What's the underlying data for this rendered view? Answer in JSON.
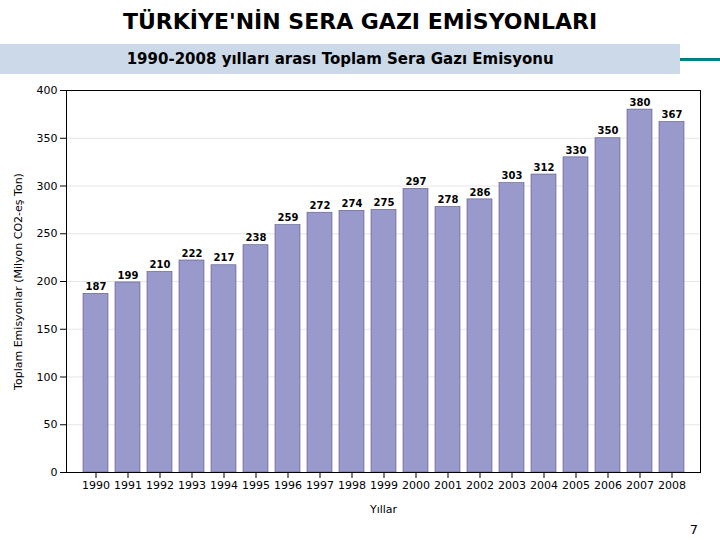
{
  "chart_data": {
    "type": "bar",
    "title": "TÜRKİYE'NİN SERA GAZI EMİSYONLARI",
    "subtitle": "1990-2008 yılları arası Toplam Sera Gazı Emisyonu",
    "categories": [
      "1990",
      "1991",
      "1992",
      "1993",
      "1994",
      "1995",
      "1996",
      "1997",
      "1998",
      "1999",
      "2000",
      "2001",
      "2002",
      "2003",
      "2004",
      "2005",
      "2006",
      "2007",
      "2008"
    ],
    "values": [
      187,
      199,
      210,
      222,
      217,
      238,
      259,
      272,
      274,
      275,
      297,
      278,
      286,
      303,
      312,
      330,
      350,
      380,
      367
    ],
    "color": "#9999CC",
    "xlabel": "Yıllar",
    "ylabel": "Toplam Emisyonlar (Milyon CO2-eş Ton)",
    "ylim": [
      0,
      400
    ],
    "yticks": [
      0,
      50,
      100,
      150,
      200,
      250,
      300,
      350,
      400
    ],
    "grid": true,
    "data_labels": true,
    "page_number": "7"
  }
}
